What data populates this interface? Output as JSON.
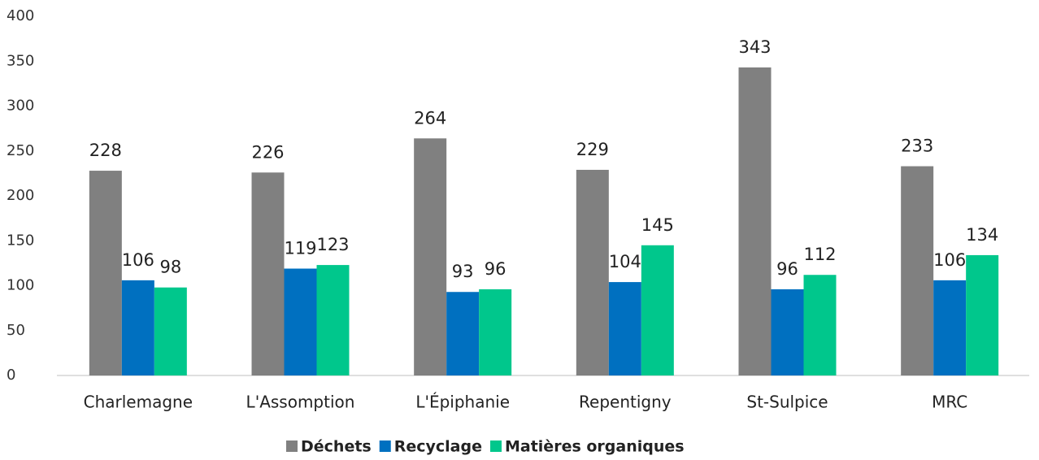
{
  "chart_data": {
    "type": "bar",
    "categories": [
      "Charlemagne",
      "L'Assomption",
      "L'Épiphanie",
      "Repentigny",
      "St-Sulpice",
      "MRC"
    ],
    "series": [
      {
        "name": "Déchets",
        "color": "#808080",
        "values": [
          228,
          226,
          264,
          229,
          343,
          233
        ]
      },
      {
        "name": "Recyclage",
        "color": "#0070c0",
        "values": [
          106,
          119,
          93,
          104,
          96,
          106
        ]
      },
      {
        "name": "Matières organiques",
        "color": "#00c78c",
        "values": [
          98,
          123,
          96,
          145,
          112,
          134
        ]
      }
    ],
    "ylim": [
      0,
      400
    ],
    "yticks": [
      0,
      50,
      100,
      150,
      200,
      250,
      300,
      350,
      400
    ],
    "grid": false,
    "legend": "bottom"
  }
}
